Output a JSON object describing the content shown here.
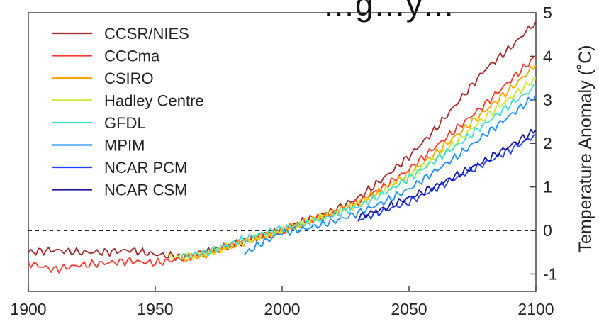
{
  "chart_data": {
    "type": "line",
    "title": "…g…y…",
    "xlabel": "",
    "ylabel": "Temperature Anomaly (˚C)",
    "xlim": [
      1900,
      2100
    ],
    "ylim": [
      -1.4,
      5
    ],
    "x_ticks": [
      "1900",
      "1950",
      "2000",
      "2050",
      "2100"
    ],
    "y_ticks": [
      "-1",
      "0",
      "1",
      "2",
      "3",
      "4",
      "5"
    ],
    "y_axis_side": "right",
    "grid": false,
    "legend_position": "top-left",
    "reference_line": {
      "y": 0,
      "style": "dashed"
    },
    "series": [
      {
        "name": "CCSR/NIES",
        "color": "#a52a2a",
        "points": [
          [
            1900,
            -0.5
          ],
          [
            1910,
            -0.45
          ],
          [
            1920,
            -0.5
          ],
          [
            1930,
            -0.5
          ],
          [
            1940,
            -0.45
          ],
          [
            1950,
            -0.55
          ],
          [
            1960,
            -0.6
          ],
          [
            1970,
            -0.5
          ],
          [
            1980,
            -0.35
          ],
          [
            1990,
            -0.15
          ],
          [
            2000,
            0.0
          ],
          [
            2010,
            0.25
          ],
          [
            2020,
            0.45
          ],
          [
            2030,
            0.75
          ],
          [
            2040,
            1.2
          ],
          [
            2050,
            1.7
          ],
          [
            2060,
            2.3
          ],
          [
            2070,
            3.0
          ],
          [
            2080,
            3.7
          ],
          [
            2090,
            4.2
          ],
          [
            2100,
            4.8
          ]
        ]
      },
      {
        "name": "CCCma",
        "color": "#ff3b2f",
        "points": [
          [
            1900,
            -0.75
          ],
          [
            1910,
            -0.9
          ],
          [
            1920,
            -0.8
          ],
          [
            1930,
            -0.75
          ],
          [
            1940,
            -0.7
          ],
          [
            1950,
            -0.75
          ],
          [
            1960,
            -0.65
          ],
          [
            1970,
            -0.5
          ],
          [
            1980,
            -0.35
          ],
          [
            1990,
            -0.15
          ],
          [
            2000,
            0.0
          ],
          [
            2010,
            0.2
          ],
          [
            2020,
            0.4
          ],
          [
            2030,
            0.65
          ],
          [
            2040,
            1.0
          ],
          [
            2050,
            1.4
          ],
          [
            2060,
            1.9
          ],
          [
            2070,
            2.4
          ],
          [
            2080,
            2.9
          ],
          [
            2090,
            3.45
          ],
          [
            2100,
            4.0
          ]
        ]
      },
      {
        "name": "CSIRO",
        "color": "#ffa500",
        "points": [
          [
            1960,
            -0.7
          ],
          [
            1970,
            -0.55
          ],
          [
            1980,
            -0.35
          ],
          [
            1990,
            -0.2
          ],
          [
            2000,
            0.0
          ],
          [
            2010,
            0.2
          ],
          [
            2020,
            0.4
          ],
          [
            2030,
            0.65
          ],
          [
            2040,
            0.95
          ],
          [
            2050,
            1.3
          ],
          [
            2060,
            1.75
          ],
          [
            2070,
            2.25
          ],
          [
            2080,
            2.75
          ],
          [
            2090,
            3.25
          ],
          [
            2100,
            3.8
          ]
        ]
      },
      {
        "name": "Hadley Centre",
        "color": "#cce833",
        "points": [
          [
            1955,
            -0.6
          ],
          [
            1960,
            -0.6
          ],
          [
            1970,
            -0.55
          ],
          [
            1980,
            -0.35
          ],
          [
            1990,
            -0.15
          ],
          [
            2000,
            0.0
          ],
          [
            2010,
            0.2
          ],
          [
            2020,
            0.4
          ],
          [
            2030,
            0.6
          ],
          [
            2040,
            0.9
          ],
          [
            2050,
            1.25
          ],
          [
            2060,
            1.65
          ],
          [
            2070,
            2.1
          ],
          [
            2080,
            2.6
          ],
          [
            2090,
            3.05
          ],
          [
            2100,
            3.5
          ]
        ]
      },
      {
        "name": "GFDL",
        "color": "#40e0d0",
        "points": [
          [
            1960,
            -0.6
          ],
          [
            1970,
            -0.5
          ],
          [
            1980,
            -0.3
          ],
          [
            1990,
            -0.1
          ],
          [
            2000,
            0.05
          ],
          [
            2010,
            0.15
          ],
          [
            2020,
            0.35
          ],
          [
            2030,
            0.55
          ],
          [
            2040,
            0.85
          ],
          [
            2050,
            1.2
          ],
          [
            2060,
            1.6
          ],
          [
            2070,
            2.0
          ],
          [
            2080,
            2.45
          ],
          [
            2090,
            2.9
          ],
          [
            2100,
            3.3
          ]
        ]
      },
      {
        "name": "MPIM",
        "color": "#1e90ff",
        "points": [
          [
            1985,
            -0.55
          ],
          [
            1990,
            -0.35
          ],
          [
            2000,
            -0.05
          ],
          [
            2010,
            0.05
          ],
          [
            2020,
            0.2
          ],
          [
            2030,
            0.4
          ],
          [
            2040,
            0.65
          ],
          [
            2050,
            0.95
          ],
          [
            2060,
            1.35
          ],
          [
            2070,
            1.75
          ],
          [
            2080,
            2.2
          ],
          [
            2090,
            2.65
          ],
          [
            2100,
            3.1
          ]
        ]
      },
      {
        "name": "NCAR PCM",
        "color": "#2040ff",
        "points": [
          [
            2030,
            0.25
          ],
          [
            2040,
            0.45
          ],
          [
            2050,
            0.65
          ],
          [
            2060,
            0.95
          ],
          [
            2070,
            1.25
          ],
          [
            2080,
            1.55
          ],
          [
            2090,
            1.85
          ],
          [
            2100,
            2.2
          ]
        ]
      },
      {
        "name": "NCAR CSM",
        "color": "#1a1aa0",
        "points": [
          [
            2030,
            0.3
          ],
          [
            2040,
            0.5
          ],
          [
            2050,
            0.75
          ],
          [
            2060,
            1.0
          ],
          [
            2070,
            1.3
          ],
          [
            2080,
            1.6
          ],
          [
            2090,
            1.95
          ],
          [
            2100,
            2.3
          ]
        ]
      }
    ]
  }
}
